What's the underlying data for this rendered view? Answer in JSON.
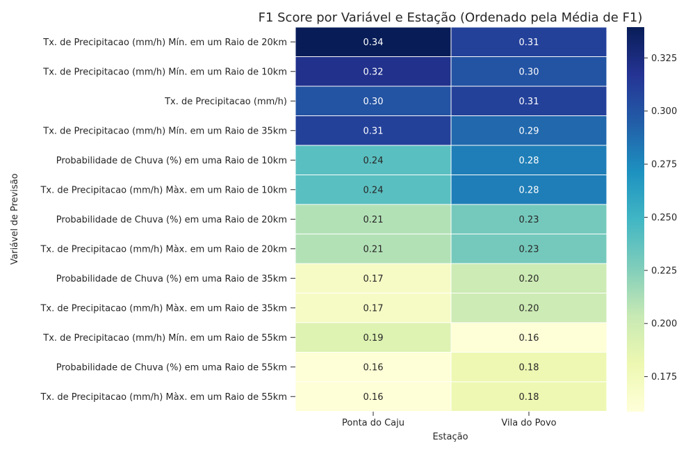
{
  "chart_data": {
    "type": "heatmap",
    "title": "F1 Score por Variável e Estação (Ordenado pela Média de F1)",
    "xlabel": "Estação",
    "ylabel": "Variável de Previsão",
    "categories": [
      "Ponta do Caju",
      "Vila do Povo"
    ],
    "rows": [
      "Tx. de Precipitacao (mm/h) Mín. em um Raio de 20km",
      "Tx. de Precipitacao (mm/h) Mín. em um Raio de 10km",
      "Tx. de Precipitacao (mm/h)",
      "Tx. de Precipitacao (mm/h) Mín. em um Raio de 35km",
      "Probabilidade de Chuva (%) em uma Raio de 10km",
      "Tx. de Precipitacao (mm/h) Màx. em um Raio de 10km",
      "Probabilidade de Chuva (%) em uma Raio de 20km",
      "Tx. de Precipitacao (mm/h) Màx. em um Raio de 20km",
      "Probabilidade de Chuva (%) em uma Raio de 35km",
      "Tx. de Precipitacao (mm/h) Màx. em um Raio de 35km",
      "Tx. de Precipitacao (mm/h) Mín. em um Raio de 55km",
      "Probabilidade de Chuva (%) em uma Raio de 55km",
      "Tx. de Precipitacao (mm/h) Màx. em um Raio de 55km"
    ],
    "values": [
      [
        0.34,
        0.31
      ],
      [
        0.32,
        0.3
      ],
      [
        0.3,
        0.31
      ],
      [
        0.31,
        0.29
      ],
      [
        0.24,
        0.28
      ],
      [
        0.24,
        0.28
      ],
      [
        0.21,
        0.23
      ],
      [
        0.21,
        0.23
      ],
      [
        0.17,
        0.2
      ],
      [
        0.17,
        0.2
      ],
      [
        0.19,
        0.16
      ],
      [
        0.16,
        0.18
      ],
      [
        0.16,
        0.18
      ]
    ],
    "colorbar": {
      "ticks": [
        "0.175",
        "0.200",
        "0.225",
        "0.250",
        "0.275",
        "0.300",
        "0.325"
      ],
      "tick_values": [
        0.175,
        0.2,
        0.225,
        0.25,
        0.275,
        0.3,
        0.325
      ],
      "range": [
        0.1585,
        0.3395
      ],
      "colormap": "YlGnBu"
    }
  }
}
